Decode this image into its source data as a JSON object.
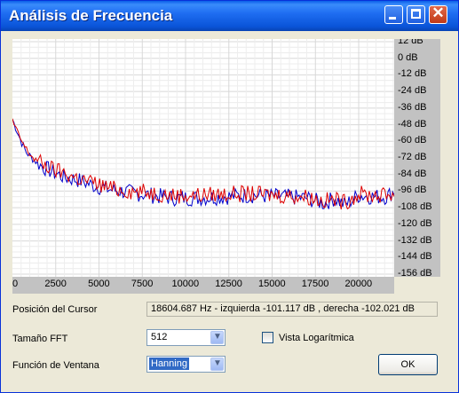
{
  "window": {
    "title": "Análisis de Frecuencia"
  },
  "chart_data": {
    "type": "line",
    "x_ticks": [
      "0",
      "2500",
      "5000",
      "7500",
      "10000",
      "12500",
      "15000",
      "17500",
      "20000"
    ],
    "y_ticks": [
      "12 dB",
      "0 dB",
      "-12 dB",
      "-24 dB",
      "-36 dB",
      "-48 dB",
      "-60 dB",
      "-72 dB",
      "-84 dB",
      "-96 dB",
      "-108 dB",
      "-120 dB",
      "-132 dB",
      "-144 dB",
      "-156 dB"
    ],
    "xlim": [
      0,
      22050
    ],
    "ylim": [
      -160,
      12
    ],
    "series": [
      {
        "color": "#0000cc",
        "x": [
          0,
          250,
          500,
          800,
          1200,
          1700,
          2300,
          3000,
          3800,
          4700,
          5700,
          6800,
          8000,
          9300,
          10700,
          12200,
          13800,
          15500,
          17000,
          18000,
          18604,
          19200,
          20000,
          20800,
          21600,
          22050
        ],
        "y": [
          -44,
          -52,
          -60,
          -68,
          -73,
          -78,
          -82,
          -86,
          -88,
          -92,
          -95,
          -97,
          -99,
          -101,
          -101,
          -100,
          -99,
          -100,
          -101,
          -105,
          -101,
          -106,
          -99,
          -100,
          -100,
          -96
        ]
      },
      {
        "color": "#dd0000",
        "x": [
          0,
          250,
          500,
          800,
          1200,
          1700,
          2300,
          3000,
          3800,
          4700,
          5700,
          6800,
          8000,
          9300,
          10700,
          12200,
          13800,
          15500,
          17000,
          18000,
          18604,
          19200,
          20000,
          20800,
          21600,
          22050
        ],
        "y": [
          -45,
          -53,
          -59,
          -66,
          -72,
          -76,
          -80,
          -83,
          -87,
          -90,
          -94,
          -96,
          -97,
          -99,
          -99,
          -98,
          -98,
          -99,
          -100,
          -103,
          -102,
          -104,
          -98,
          -99,
          -99,
          -97
        ]
      }
    ]
  },
  "cursor": {
    "label": "Posición del Cursor",
    "value": "18604.687 Hz  -  izquierda -101.117 dB , derecha -102.021 dB"
  },
  "fft": {
    "label": "Tamaño FFT",
    "value": "512"
  },
  "window_fn": {
    "label": "Función de Ventana",
    "value": "Hanning"
  },
  "log_view": {
    "label": "Vista Logarítmica",
    "checked": false
  },
  "ok_label": "OK",
  "icons": [
    "minimize-icon",
    "maximize-icon",
    "close-icon",
    "dropdown-arrow-icon"
  ]
}
